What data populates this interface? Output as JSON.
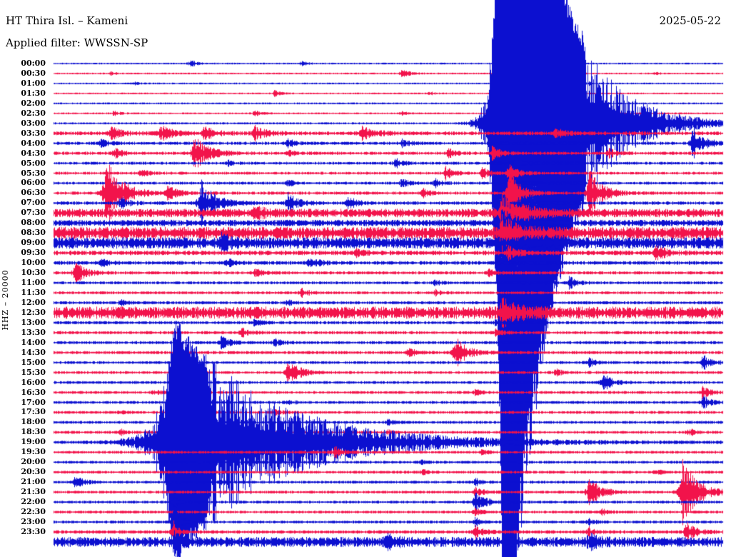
{
  "header": {
    "station_title": "HT Thira Isl. – Kameni",
    "applied_filter_label": "Applied filter: WWSSN-SP",
    "date": "2025-05-22"
  },
  "y_axis_label": "HHZ – 20000",
  "chart_data": {
    "type": "line",
    "variant": "helicorder-seismogram",
    "station": "HT Thira Isl. – Kameni",
    "channel_gain_label": "HHZ – 20000",
    "date": "2025-05-22",
    "filter": "WWSSN-SP",
    "minutes_per_row": 30,
    "x_axis_note": "each line spans 30 minutes, 00:00 to 23:30 top to bottom; no tick marks or grid shown",
    "grid": false,
    "colors": {
      "blue": "#0c10d0",
      "red": "#f2134b",
      "pattern": "rows alternate blue/red starting with blue at 00:00"
    },
    "row_format": [
      "label",
      "background_noise_amplitude_px",
      "events as [x_fraction_of_row, peak_amplitude_px, decay_fraction_of_row]"
    ],
    "rows": [
      [
        "00:00",
        1.2,
        [
          [
            0.205,
            5,
            0.008
          ],
          [
            0.37,
            3.5,
            0.007
          ]
        ]
      ],
      [
        "00:30",
        1.2,
        [
          [
            0.085,
            3,
            0.006
          ],
          [
            0.52,
            6,
            0.01
          ],
          [
            0.9,
            3,
            0.006
          ]
        ]
      ],
      [
        "01:00",
        1.2,
        [
          [
            0.12,
            3,
            0.006
          ],
          [
            0.8,
            2.5,
            0.006
          ]
        ]
      ],
      [
        "01:30",
        1.2,
        [
          [
            0.33,
            4,
            0.008
          ],
          [
            0.56,
            3,
            0.006
          ]
        ]
      ],
      [
        "02:00",
        1.3,
        [
          [
            0.68,
            3,
            0.006
          ]
        ]
      ],
      [
        "02:30",
        1.3,
        [
          [
            0.09,
            4,
            0.008
          ],
          [
            0.3,
            4,
            0.008
          ],
          [
            0.52,
            3,
            0.006
          ]
        ]
      ],
      [
        "03:00",
        1.5,
        [
          [
            0.673,
            900,
            0.06
          ]
        ]
      ],
      [
        "03:30",
        2.6,
        [
          [
            0.085,
            9,
            0.015
          ],
          [
            0.16,
            10,
            0.018
          ],
          [
            0.225,
            9,
            0.015
          ],
          [
            0.3,
            10,
            0.016
          ],
          [
            0.46,
            11,
            0.018
          ],
          [
            0.75,
            7,
            0.012
          ]
        ]
      ],
      [
        "04:00",
        2.2,
        [
          [
            0.07,
            6,
            0.01
          ],
          [
            0.35,
            6,
            0.01
          ],
          [
            0.52,
            5,
            0.01
          ],
          [
            0.955,
            26,
            0.015
          ]
        ]
      ],
      [
        "04:30",
        2.2,
        [
          [
            0.09,
            7,
            0.012
          ],
          [
            0.21,
            24,
            0.02
          ],
          [
            0.35,
            5,
            0.01
          ],
          [
            0.59,
            7,
            0.01
          ],
          [
            0.655,
            10,
            0.012
          ],
          [
            0.83,
            6,
            0.01
          ]
        ]
      ],
      [
        "05:00",
        2.0,
        [
          [
            0.26,
            4,
            0.008
          ],
          [
            0.51,
            7,
            0.01
          ],
          [
            0.69,
            8,
            0.01
          ]
        ]
      ],
      [
        "05:30",
        2.0,
        [
          [
            0.13,
            5,
            0.01
          ],
          [
            0.585,
            9,
            0.012
          ],
          [
            0.64,
            8,
            0.01
          ],
          [
            0.68,
            14,
            0.012
          ]
        ]
      ],
      [
        "06:00",
        2.0,
        [
          [
            0.35,
            5,
            0.009
          ],
          [
            0.52,
            7,
            0.01
          ],
          [
            0.57,
            6,
            0.009
          ]
        ]
      ],
      [
        "06:30",
        2.2,
        [
          [
            0.078,
            48,
            0.022
          ],
          [
            0.17,
            9,
            0.015
          ],
          [
            0.55,
            7,
            0.01
          ],
          [
            0.68,
            38,
            0.014
          ],
          [
            0.8,
            34,
            0.018
          ]
        ]
      ],
      [
        "07:00",
        2.4,
        [
          [
            0.1,
            8,
            0.012
          ],
          [
            0.22,
            32,
            0.02
          ],
          [
            0.35,
            14,
            0.014
          ],
          [
            0.44,
            9,
            0.012
          ]
        ]
      ],
      [
        "07:30",
        6.0,
        [
          [
            0.3,
            8,
            0.012
          ],
          [
            0.67,
            26,
            0.025
          ]
        ]
      ],
      [
        "08:00",
        4.5,
        [
          [
            0.67,
            18,
            0.02
          ]
        ]
      ],
      [
        "08:30",
        8.5,
        [
          [
            0.67,
            20,
            0.02
          ]
        ]
      ],
      [
        "09:00",
        8.0,
        [
          [
            0.25,
            10,
            0.012
          ]
        ]
      ],
      [
        "09:30",
        3.2,
        [
          [
            0.45,
            6,
            0.01
          ],
          [
            0.68,
            9,
            0.012
          ],
          [
            0.9,
            11,
            0.014
          ]
        ]
      ],
      [
        "10:00",
        2.6,
        [
          [
            0.07,
            5,
            0.01
          ],
          [
            0.26,
            6,
            0.01
          ],
          [
            0.38,
            11,
            0.012
          ]
        ]
      ],
      [
        "10:30",
        2.2,
        [
          [
            0.032,
            15,
            0.014
          ],
          [
            0.3,
            6,
            0.01
          ],
          [
            0.65,
            5,
            0.009
          ]
        ]
      ],
      [
        "11:00",
        2.0,
        [
          [
            0.57,
            4,
            0.008
          ],
          [
            0.77,
            9,
            0.011
          ]
        ]
      ],
      [
        "11:30",
        2.0,
        [
          [
            0.37,
            6,
            0.01
          ],
          [
            0.57,
            4,
            0.008
          ]
        ]
      ],
      [
        "12:00",
        2.2,
        [
          [
            0.1,
            4,
            0.008
          ],
          [
            0.35,
            4,
            0.008
          ]
        ]
      ],
      [
        "12:30",
        8.5,
        [
          [
            0.67,
            16,
            0.02
          ]
        ]
      ],
      [
        "13:00",
        2.2,
        [
          [
            0.3,
            5,
            0.009
          ],
          [
            0.66,
            4,
            0.008
          ]
        ]
      ],
      [
        "13:30",
        2.2,
        [
          [
            0.28,
            7,
            0.01
          ],
          [
            0.66,
            5,
            0.009
          ]
        ]
      ],
      [
        "14:00",
        2.2,
        [
          [
            0.25,
            9,
            0.011
          ],
          [
            0.33,
            6,
            0.009
          ]
        ]
      ],
      [
        "14:30",
        2.2,
        [
          [
            0.53,
            7,
            0.01
          ],
          [
            0.6,
            22,
            0.016
          ]
        ]
      ],
      [
        "15:00",
        2.0,
        [
          [
            0.8,
            6,
            0.009
          ],
          [
            0.97,
            11,
            0.012
          ]
        ]
      ],
      [
        "15:30",
        2.0,
        [
          [
            0.35,
            20,
            0.015
          ],
          [
            0.75,
            5,
            0.009
          ]
        ]
      ],
      [
        "16:00",
        2.0,
        [
          [
            0.2,
            4,
            0.008
          ],
          [
            0.82,
            13,
            0.013
          ]
        ]
      ],
      [
        "16:30",
        2.0,
        [
          [
            0.15,
            4,
            0.008
          ],
          [
            0.63,
            4,
            0.008
          ],
          [
            0.97,
            9,
            0.01
          ]
        ]
      ],
      [
        "17:00",
        2.0,
        [
          [
            0.35,
            4,
            0.008
          ],
          [
            0.97,
            9,
            0.011
          ]
        ]
      ],
      [
        "17:30",
        2.0,
        [
          [
            0.1,
            3,
            0.007
          ],
          [
            0.33,
            5,
            0.009
          ]
        ]
      ],
      [
        "18:00",
        2.0,
        [
          [
            0.5,
            4,
            0.008
          ]
        ]
      ],
      [
        "18:30",
        2.0,
        [
          [
            0.1,
            4,
            0.008
          ],
          [
            0.5,
            3,
            0.007
          ],
          [
            0.95,
            5,
            0.009
          ]
        ]
      ],
      [
        "19:00",
        2.2,
        [
          [
            0.18,
            175,
            0.13
          ]
        ]
      ],
      [
        "19:30",
        2.0,
        [
          [
            0.42,
            8,
            0.011
          ],
          [
            0.64,
            4,
            0.008
          ]
        ]
      ],
      [
        "20:00",
        2.0,
        [
          [
            0.3,
            3.5,
            0.007
          ],
          [
            0.55,
            3,
            0.007
          ]
        ]
      ],
      [
        "20:30",
        2.0,
        [
          [
            0.55,
            4,
            0.008
          ],
          [
            0.9,
            4,
            0.008
          ]
        ]
      ],
      [
        "21:00",
        2.0,
        [
          [
            0.032,
            9,
            0.011
          ],
          [
            0.25,
            4,
            0.008
          ],
          [
            0.63,
            5,
            0.009
          ]
        ]
      ],
      [
        "21:30",
        2.0,
        [
          [
            0.63,
            7,
            0.01
          ],
          [
            0.8,
            23,
            0.015
          ],
          [
            0.94,
            48,
            0.02
          ]
        ]
      ],
      [
        "22:00",
        2.0,
        [
          [
            0.18,
            5,
            0.009
          ],
          [
            0.63,
            15,
            0.014
          ]
        ]
      ],
      [
        "22:30",
        2.0,
        [
          [
            0.63,
            5,
            0.009
          ],
          [
            0.82,
            4,
            0.008
          ]
        ]
      ],
      [
        "23:00",
        2.0,
        [
          [
            0.18,
            38,
            0.006
          ],
          [
            0.63,
            6,
            0.009
          ],
          [
            0.8,
            5,
            0.008
          ]
        ]
      ],
      [
        "23:30",
        2.4,
        [
          [
            0.18,
            20,
            0.005
          ],
          [
            0.63,
            9,
            0.011
          ],
          [
            0.8,
            6,
            0.009
          ],
          [
            0.945,
            14,
            0.013
          ]
        ]
      ],
      [
        "",
        7.0,
        [
          [
            0.18,
            10,
            0.01
          ],
          [
            0.5,
            8,
            0.012
          ],
          [
            0.8,
            8,
            0.012
          ]
        ]
      ]
    ],
    "notable_events": [
      {
        "row": "03:00",
        "minute_in_row": 20,
        "description": "very large event: clipped blue trace forms a solid vertical band across the entire plot height, with long decaying coda to the right over following rows"
      },
      {
        "row": "06:30",
        "minute_in_row": 2.3,
        "description": "large red local event near line start"
      },
      {
        "row": "07:00",
        "minute_in_row": 6.6,
        "description": "large blue local event"
      },
      {
        "row": "07:30–09:30",
        "minute_in_row": null,
        "description": "sustained high-amplitude tremor: fully saturated red and blue lines across whole width"
      },
      {
        "row": "12:30",
        "minute_in_row": null,
        "description": "saturated red line across whole width"
      },
      {
        "row": "19:00",
        "minute_in_row": 5.4,
        "description": "very large blue event with tall clipped onset (ink spans ~17:30–23:30 rows) and long coda"
      },
      {
        "row": "21:30",
        "minute_in_row": 28,
        "description": "large red event near right edge"
      },
      {
        "row": "23:00",
        "minute_in_row": 5.4,
        "description": "narrow high-amplitude blue spike"
      }
    ]
  }
}
